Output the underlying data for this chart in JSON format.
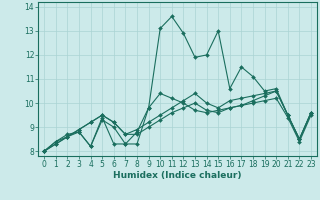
{
  "xlabel": "Humidex (Indice chaleur)",
  "ylabel": "",
  "xlim": [
    -0.5,
    23.5
  ],
  "ylim": [
    7.8,
    14.2
  ],
  "yticks": [
    8,
    9,
    10,
    11,
    12,
    13,
    14
  ],
  "xticks": [
    0,
    1,
    2,
    3,
    4,
    5,
    6,
    7,
    8,
    9,
    10,
    11,
    12,
    13,
    14,
    15,
    16,
    17,
    18,
    19,
    20,
    21,
    22,
    23
  ],
  "background_color": "#cceaea",
  "grid_color": "#aad4d4",
  "line_color": "#1a6e5e",
  "series": [
    [
      8.0,
      8.4,
      8.6,
      8.8,
      8.2,
      9.4,
      8.3,
      8.3,
      8.8,
      9.8,
      13.1,
      13.6,
      12.9,
      11.9,
      12.0,
      13.0,
      10.6,
      11.5,
      11.1,
      10.5,
      10.6,
      9.5,
      8.5,
      9.6
    ],
    [
      8.0,
      8.4,
      8.7,
      8.8,
      8.2,
      9.3,
      9.0,
      8.3,
      8.3,
      9.8,
      10.4,
      10.2,
      10.0,
      9.7,
      9.6,
      9.7,
      9.8,
      9.9,
      10.1,
      10.3,
      10.5,
      9.5,
      8.5,
      9.6
    ],
    [
      8.0,
      8.3,
      8.6,
      8.9,
      9.2,
      9.5,
      9.2,
      8.7,
      8.9,
      9.2,
      9.5,
      9.8,
      10.1,
      10.4,
      10.0,
      9.8,
      10.1,
      10.2,
      10.3,
      10.4,
      10.5,
      9.5,
      8.5,
      9.6
    ],
    [
      8.0,
      8.3,
      8.6,
      8.9,
      9.2,
      9.5,
      9.2,
      8.7,
      8.7,
      9.0,
      9.3,
      9.6,
      9.8,
      10.0,
      9.7,
      9.6,
      9.8,
      9.9,
      10.0,
      10.1,
      10.2,
      9.4,
      8.4,
      9.5
    ]
  ],
  "tick_fontsize": 5.5,
  "xlabel_fontsize": 6.5,
  "xlabel_fontweight": "bold",
  "linewidth": 0.8,
  "markersize": 2.0
}
